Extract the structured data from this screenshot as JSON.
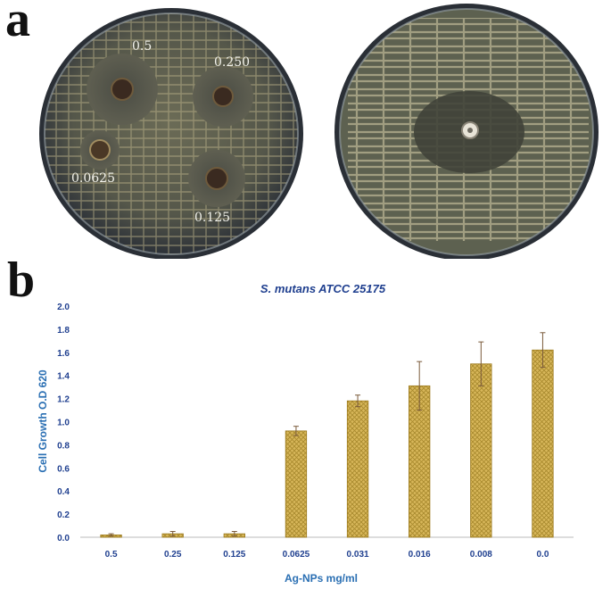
{
  "figure": {
    "panel_a_label": "a",
    "panel_b_label": "b",
    "plate_labels": [
      "0.5",
      "0.250",
      "0.0625",
      "0.125"
    ]
  },
  "colors": {
    "bar_fill": "#d8b75a",
    "bar_stroke": "#9c7a1c",
    "axis_text": "#2a6fb3",
    "tick_text": "#1f3f8f",
    "title_text": "#1f3f8f"
  },
  "chart_data": {
    "type": "bar",
    "title": "S. mutans ATCC 25175",
    "xlabel": "Ag-NPs mg/ml",
    "ylabel": "Cell Growth O.D 620",
    "categories": [
      "0.5",
      "0.25",
      "0.125",
      "0.0625",
      "0.031",
      "0.016",
      "0.008",
      "0.0"
    ],
    "values": [
      0.02,
      0.03,
      0.03,
      0.92,
      1.18,
      1.31,
      1.5,
      1.62
    ],
    "errors": [
      0.01,
      0.02,
      0.02,
      0.04,
      0.05,
      0.21,
      0.19,
      0.15
    ],
    "ylim": [
      0,
      2.0
    ],
    "yticks": [
      "0.0",
      "0.2",
      "0.4",
      "0.6",
      "0.8",
      "1.0",
      "1.2",
      "1.4",
      "1.6",
      "1.8",
      "2.0"
    ],
    "grid": false
  }
}
